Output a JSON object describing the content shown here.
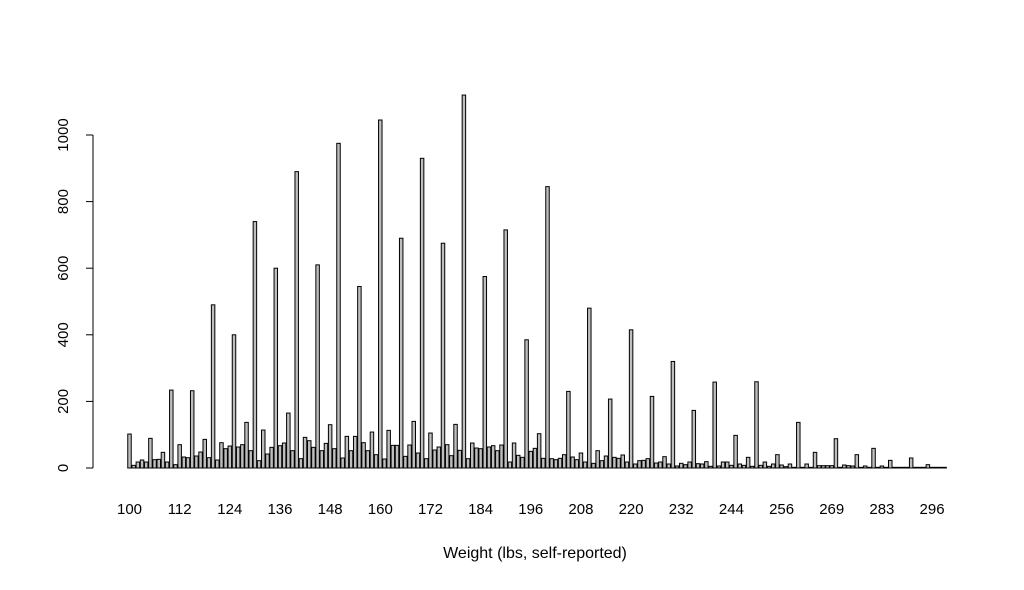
{
  "chart_data": {
    "type": "bar",
    "title": "",
    "xlabel": "Weight (lbs, self-reported)",
    "ylabel": "",
    "ylim": [
      0,
      1120
    ],
    "yticks": [
      0,
      200,
      400,
      600,
      800,
      1000
    ],
    "grid": false,
    "label_every": 12,
    "bar_fill": "#bebebe",
    "categories": [
      100,
      101,
      102,
      103,
      104,
      105,
      106,
      107,
      108,
      109,
      110,
      111,
      112,
      113,
      114,
      115,
      116,
      117,
      118,
      119,
      120,
      121,
      122,
      123,
      124,
      125,
      126,
      127,
      128,
      129,
      130,
      131,
      132,
      133,
      134,
      135,
      136,
      137,
      138,
      139,
      140,
      141,
      142,
      143,
      144,
      145,
      146,
      147,
      148,
      149,
      150,
      151,
      152,
      153,
      154,
      155,
      156,
      157,
      158,
      159,
      160,
      161,
      162,
      163,
      164,
      165,
      166,
      167,
      168,
      169,
      170,
      171,
      172,
      173,
      174,
      175,
      176,
      177,
      178,
      179,
      180,
      181,
      182,
      183,
      184,
      185,
      186,
      187,
      188,
      189,
      190,
      191,
      192,
      193,
      194,
      195,
      196,
      197,
      198,
      199,
      200,
      201,
      202,
      203,
      204,
      205,
      206,
      207,
      208,
      209,
      210,
      211,
      212,
      213,
      214,
      215,
      216,
      217,
      218,
      219,
      220,
      221,
      222,
      223,
      224,
      225,
      226,
      227,
      228,
      229,
      230,
      231,
      232,
      233,
      234,
      235,
      236,
      237,
      238,
      239,
      240,
      241,
      242,
      243,
      244,
      245,
      246,
      247,
      248,
      249,
      250,
      251,
      252,
      253,
      254,
      255,
      256,
      257,
      258,
      259,
      260,
      261,
      262,
      264,
      265,
      266,
      267,
      268,
      269,
      270,
      271,
      272,
      273,
      274,
      275,
      276,
      278,
      279,
      280,
      282,
      283,
      284,
      285,
      286,
      287,
      288,
      289,
      290,
      291,
      292,
      294,
      295,
      296,
      297,
      298,
      300
    ],
    "values": [
      102,
      8,
      18,
      24,
      18,
      89,
      25,
      26,
      47,
      18,
      234,
      10,
      70,
      33,
      31,
      232,
      36,
      48,
      86,
      31,
      490,
      24,
      76,
      58,
      66,
      400,
      63,
      70,
      137,
      52,
      740,
      22,
      114,
      42,
      62,
      600,
      67,
      75,
      165,
      52,
      890,
      28,
      92,
      82,
      62,
      610,
      52,
      74,
      130,
      58,
      975,
      30,
      95,
      52,
      95,
      545,
      76,
      52,
      108,
      40,
      1045,
      27,
      113,
      68,
      68,
      690,
      35,
      69,
      140,
      45,
      930,
      28,
      105,
      54,
      63,
      675,
      70,
      37,
      131,
      53,
      1120,
      28,
      75,
      60,
      58,
      575,
      63,
      67,
      52,
      69,
      715,
      18,
      75,
      38,
      32,
      385,
      50,
      59,
      103,
      29,
      845,
      28,
      25,
      29,
      40,
      230,
      33,
      25,
      45,
      18,
      480,
      14,
      52,
      22,
      36,
      207,
      32,
      29,
      39,
      18,
      415,
      12,
      22,
      23,
      28,
      215,
      15,
      18,
      34,
      12,
      320,
      6,
      14,
      10,
      18,
      173,
      13,
      12,
      19,
      5,
      258,
      6,
      18,
      18,
      8,
      98,
      12,
      8,
      32,
      5,
      259,
      8,
      18,
      5,
      12,
      40,
      9,
      4,
      12,
      2,
      137,
      2,
      12,
      2,
      47,
      7,
      7,
      7,
      7,
      88,
      2,
      9,
      7,
      6,
      40,
      2,
      6,
      2,
      59,
      2,
      6,
      2,
      23,
      2,
      2,
      2,
      2,
      30,
      2,
      2,
      2,
      10,
      2,
      2,
      2,
      2
    ]
  }
}
